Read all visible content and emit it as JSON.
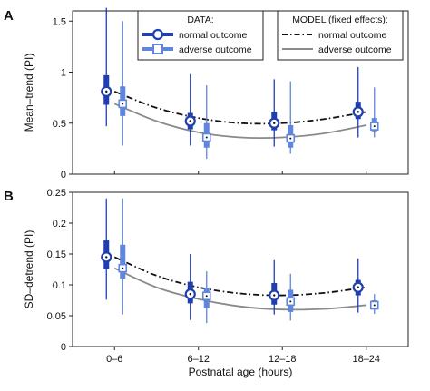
{
  "colors": {
    "normal": "#1f3fb0",
    "adverse": "#5f86dc",
    "normal_model": "#111111",
    "adverse_model": "#8a8a8a"
  },
  "legend": {
    "data_title": "DATA:",
    "data_normal": "normal outcome",
    "data_adverse": "adverse outcome",
    "model_title": "MODEL (fixed effects):",
    "model_normal": "normal outcome",
    "model_adverse": "adverse outcome"
  },
  "xlabel": "Postnatal age (hours)",
  "chart_data": [
    {
      "type": "box",
      "panel": "A",
      "ylabel": "Mean–trend (PI)",
      "categories": [
        "0–6",
        "6–12",
        "12–18",
        "18–24"
      ],
      "ylim": [
        0,
        1.6
      ],
      "yticks": [
        "0",
        "0.5",
        "1",
        "1.5"
      ],
      "ytick_values": [
        0,
        0.5,
        1,
        1.5
      ],
      "series": [
        {
          "name": "normal outcome",
          "median": [
            0.81,
            0.52,
            0.5,
            0.61
          ],
          "q1": [
            0.68,
            0.44,
            0.43,
            0.54
          ],
          "q3": [
            0.97,
            0.6,
            0.61,
            0.71
          ],
          "whisker_low": [
            0.47,
            0.28,
            0.27,
            0.36
          ],
          "whisker_high": [
            1.63,
            0.98,
            0.93,
            1.05
          ]
        },
        {
          "name": "adverse outcome",
          "median": [
            0.69,
            0.36,
            0.35,
            0.47
          ],
          "q1": [
            0.57,
            0.26,
            0.26,
            0.42
          ],
          "q3": [
            0.86,
            0.5,
            0.48,
            0.55
          ],
          "whisker_low": [
            0.28,
            0.15,
            0.2,
            0.36
          ],
          "whisker_high": [
            1.5,
            0.87,
            0.91,
            0.85
          ]
        }
      ],
      "model": {
        "x": [
          0,
          0.5,
          1,
          1.5,
          2,
          2.5,
          3
        ],
        "normal": [
          0.81,
          0.65,
          0.55,
          0.5,
          0.5,
          0.54,
          0.61
        ],
        "adverse": [
          0.69,
          0.52,
          0.41,
          0.36,
          0.36,
          0.4,
          0.48
        ]
      }
    },
    {
      "type": "box",
      "panel": "B",
      "ylabel": "SD–detrend (PI)",
      "categories": [
        "0–6",
        "6–12",
        "12–18",
        "18–24"
      ],
      "ylim": [
        0,
        0.25
      ],
      "yticks": [
        "0",
        "0.05",
        "0.1",
        "0.15",
        "0.2",
        "0.25"
      ],
      "ytick_values": [
        0,
        0.05,
        0.1,
        0.15,
        0.2,
        0.25
      ],
      "series": [
        {
          "name": "normal outcome",
          "median": [
            0.145,
            0.085,
            0.083,
            0.096
          ],
          "q1": [
            0.125,
            0.07,
            0.068,
            0.083
          ],
          "q3": [
            0.172,
            0.105,
            0.103,
            0.108
          ],
          "whisker_low": [
            0.076,
            0.043,
            0.052,
            0.055
          ],
          "whisker_high": [
            0.24,
            0.15,
            0.14,
            0.143
          ]
        },
        {
          "name": "adverse outcome",
          "median": [
            0.127,
            0.082,
            0.073,
            0.067
          ],
          "q1": [
            0.11,
            0.062,
            0.056,
            0.06
          ],
          "q3": [
            0.165,
            0.095,
            0.092,
            0.075
          ],
          "whisker_low": [
            0.052,
            0.038,
            0.042,
            0.053
          ],
          "whisker_high": [
            0.24,
            0.122,
            0.118,
            0.085
          ]
        }
      ],
      "model": {
        "x": [
          0,
          0.5,
          1,
          1.5,
          2,
          2.5,
          3
        ],
        "normal": [
          0.145,
          0.115,
          0.096,
          0.086,
          0.083,
          0.087,
          0.096
        ],
        "adverse": [
          0.127,
          0.096,
          0.077,
          0.065,
          0.06,
          0.061,
          0.067
        ]
      }
    }
  ]
}
